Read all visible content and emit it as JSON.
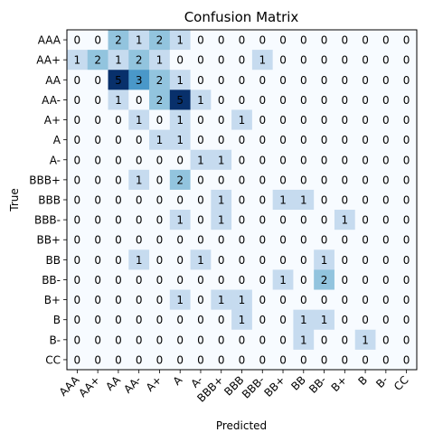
{
  "chart_data": {
    "type": "heatmap",
    "title": "Confusion Matrix",
    "xlabel": "Predicted",
    "ylabel": "True",
    "row_labels": [
      "AAA",
      "AA+",
      "AA",
      "AA-",
      "A+",
      "A",
      "A-",
      "BBB+",
      "BBB",
      "BBB-",
      "BB+",
      "BB",
      "BB-",
      "B+",
      "B",
      "B-",
      "CC"
    ],
    "col_labels": [
      "AAA",
      "AA+",
      "AA",
      "AA-",
      "A+",
      "A",
      "A-",
      "BBB+",
      "BBB",
      "BBB-",
      "BB+",
      "BB",
      "BB-",
      "B+",
      "B",
      "B-",
      "CC"
    ],
    "matrix": [
      [
        0,
        0,
        2,
        1,
        2,
        1,
        0,
        0,
        0,
        0,
        0,
        0,
        0,
        0,
        0,
        0,
        0
      ],
      [
        1,
        2,
        1,
        2,
        1,
        0,
        0,
        0,
        0,
        1,
        0,
        0,
        0,
        0,
        0,
        0,
        0
      ],
      [
        0,
        0,
        5,
        3,
        2,
        1,
        0,
        0,
        0,
        0,
        0,
        0,
        0,
        0,
        0,
        0,
        0
      ],
      [
        0,
        0,
        1,
        0,
        2,
        5,
        1,
        0,
        0,
        0,
        0,
        0,
        0,
        0,
        0,
        0,
        0
      ],
      [
        0,
        0,
        0,
        1,
        0,
        1,
        0,
        0,
        1,
        0,
        0,
        0,
        0,
        0,
        0,
        0,
        0
      ],
      [
        0,
        0,
        0,
        0,
        1,
        1,
        0,
        0,
        0,
        0,
        0,
        0,
        0,
        0,
        0,
        0,
        0
      ],
      [
        0,
        0,
        0,
        0,
        0,
        0,
        1,
        1,
        0,
        0,
        0,
        0,
        0,
        0,
        0,
        0,
        0
      ],
      [
        0,
        0,
        0,
        1,
        0,
        2,
        0,
        0,
        0,
        0,
        0,
        0,
        0,
        0,
        0,
        0,
        0
      ],
      [
        0,
        0,
        0,
        0,
        0,
        0,
        0,
        1,
        0,
        0,
        1,
        1,
        0,
        0,
        0,
        0,
        0
      ],
      [
        0,
        0,
        0,
        0,
        0,
        1,
        0,
        1,
        0,
        0,
        0,
        0,
        0,
        1,
        0,
        0,
        0
      ],
      [
        0,
        0,
        0,
        0,
        0,
        0,
        0,
        0,
        0,
        0,
        0,
        0,
        0,
        0,
        0,
        0,
        0
      ],
      [
        0,
        0,
        0,
        1,
        0,
        0,
        1,
        0,
        0,
        0,
        0,
        0,
        1,
        0,
        0,
        0,
        0
      ],
      [
        0,
        0,
        0,
        0,
        0,
        0,
        0,
        0,
        0,
        0,
        1,
        0,
        2,
        0,
        0,
        0,
        0
      ],
      [
        0,
        0,
        0,
        0,
        0,
        1,
        0,
        1,
        1,
        0,
        0,
        0,
        0,
        0,
        0,
        0,
        0
      ],
      [
        0,
        0,
        0,
        0,
        0,
        0,
        0,
        0,
        1,
        0,
        0,
        1,
        1,
        0,
        0,
        0,
        0
      ],
      [
        0,
        0,
        0,
        0,
        0,
        0,
        0,
        0,
        0,
        0,
        0,
        1,
        0,
        0,
        1,
        0,
        0
      ],
      [
        0,
        0,
        0,
        0,
        0,
        0,
        0,
        0,
        0,
        0,
        0,
        0,
        0,
        0,
        0,
        0,
        0
      ]
    ],
    "value_range": [
      0,
      5
    ],
    "colormap": "Blues",
    "colors": {
      "scale": [
        "#f7fbff",
        "#c6dbef",
        "#92c4de",
        "#4a98c9",
        "#1764ab",
        "#08306b"
      ],
      "text_light": "#ffffff",
      "text_dark": "#000000"
    }
  }
}
